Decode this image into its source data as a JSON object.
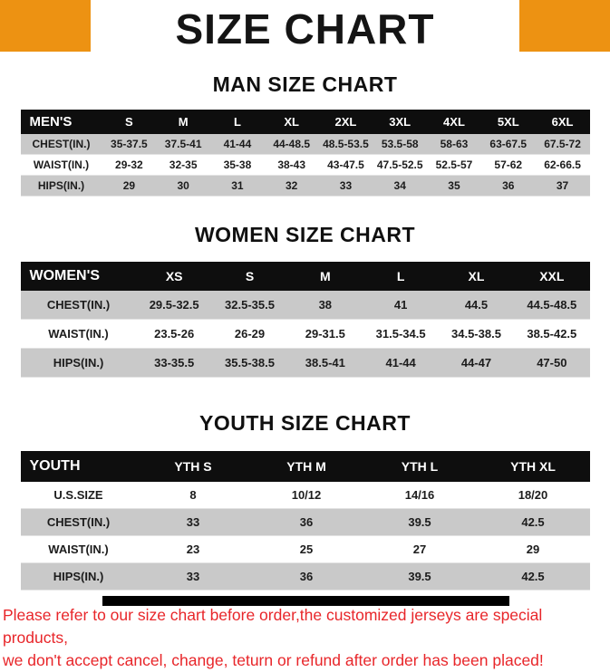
{
  "page": {
    "title": "SIZE CHART"
  },
  "colors": {
    "accent": "#ED9212",
    "notice": "#E8262A",
    "stripe": "#C9C9C9"
  },
  "tables": {
    "men": {
      "title": "MAN SIZE CHART",
      "header": [
        "MEN'S",
        "S",
        "M",
        "L",
        "XL",
        "2XL",
        "3XL",
        "4XL",
        "5XL",
        "6XL"
      ],
      "rows": [
        {
          "label": "CHEST(IN.)",
          "values": [
            "35-37.5",
            "37.5-41",
            "41-44",
            "44-48.5",
            "48.5-53.5",
            "53.5-58",
            "58-63",
            "63-67.5",
            "67.5-72"
          ]
        },
        {
          "label": "WAIST(IN.)",
          "values": [
            "29-32",
            "32-35",
            "35-38",
            "38-43",
            "43-47.5",
            "47.5-52.5",
            "52.5-57",
            "57-62",
            "62-66.5"
          ]
        },
        {
          "label": "HIPS(IN.)",
          "values": [
            "29",
            "30",
            "31",
            "32",
            "33",
            "34",
            "35",
            "36",
            "37"
          ]
        }
      ]
    },
    "women": {
      "title": "WOMEN SIZE CHART",
      "header": [
        "WOMEN'S",
        "XS",
        "S",
        "M",
        "L",
        "XL",
        "XXL"
      ],
      "rows": [
        {
          "label": "CHEST(IN.)",
          "values": [
            "29.5-32.5",
            "32.5-35.5",
            "38",
            "41",
            "44.5",
            "44.5-48.5"
          ]
        },
        {
          "label": "WAIST(IN.)",
          "values": [
            "23.5-26",
            "26-29",
            "29-31.5",
            "31.5-34.5",
            "34.5-38.5",
            "38.5-42.5"
          ]
        },
        {
          "label": "HIPS(IN.)",
          "values": [
            "33-35.5",
            "35.5-38.5",
            "38.5-41",
            "41-44",
            "44-47",
            "47-50"
          ]
        }
      ]
    },
    "youth": {
      "title": "YOUTH SIZE CHART",
      "header": [
        "YOUTH",
        "YTH S",
        "YTH M",
        "YTH L",
        "YTH XL"
      ],
      "rows": [
        {
          "label": "U.S.SIZE",
          "values": [
            "8",
            "10/12",
            "14/16",
            "18/20"
          ]
        },
        {
          "label": "CHEST(IN.)",
          "values": [
            "33",
            "36",
            "39.5",
            "42.5"
          ]
        },
        {
          "label": "WAIST(IN.)",
          "values": [
            "23",
            "25",
            "27",
            "29"
          ]
        },
        {
          "label": "HIPS(IN.)",
          "values": [
            "33",
            "36",
            "39.5",
            "42.5"
          ]
        }
      ]
    }
  },
  "footer": {
    "line1": "Please refer to our size chart before order,the customized jerseys are special products,",
    "line2": "we don't accept cancel, change, teturn or refund after order has been placed!"
  }
}
